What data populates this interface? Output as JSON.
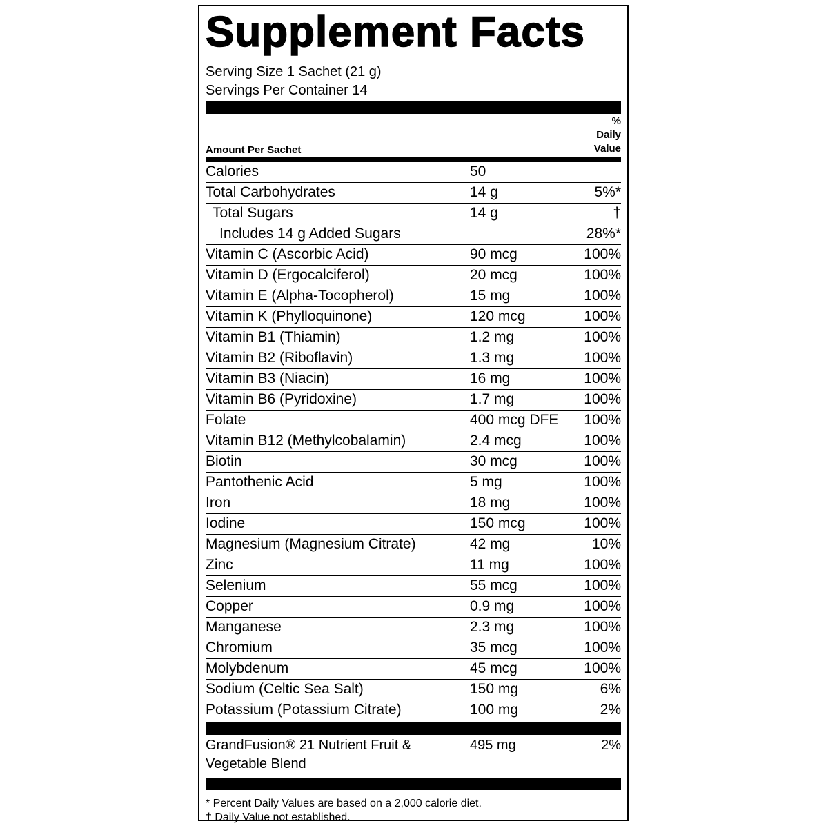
{
  "title": "Supplement Facts",
  "serving_size": "Serving Size 1 Sachet (21 g)",
  "servings_per_container": "Servings Per Container 14",
  "header": {
    "amount_per": "Amount Per Sachet",
    "daily_value": [
      "%",
      "Daily",
      "Value"
    ]
  },
  "rows": [
    {
      "name": "Calories",
      "amount": "50"
    },
    {
      "name": "Total Carbohydrates",
      "amount": "14 g",
      "dv": "5%*",
      "sub": [
        {
          "name": "Total Sugars",
          "amount": "14 g",
          "dv": "†",
          "sub": [
            {
              "name": "Includes 14 g  Added Sugars",
              "dv": "28%*"
            }
          ]
        }
      ]
    },
    {
      "name": "Vitamin C (Ascorbic Acid)",
      "amount": "90 mcg",
      "dv": "100%"
    },
    {
      "name": "Vitamin D (Ergocalciferol)",
      "amount": "20 mcg",
      "dv": "100%"
    },
    {
      "name": "Vitamin E (Alpha-Tocopherol)",
      "amount": "15 mg",
      "dv": "100%"
    },
    {
      "name": "Vitamin K (Phylloquinone)",
      "amount": "120 mcg",
      "dv": "100%"
    },
    {
      "name": "Vitamin B1 (Thiamin)",
      "amount": "1.2 mg",
      "dv": "100%"
    },
    {
      "name": "Vitamin B2 (Riboflavin)",
      "amount": "1.3 mg",
      "dv": "100%"
    },
    {
      "name": "Vitamin B3 (Niacin)",
      "amount": "16 mg",
      "dv": "100%"
    },
    {
      "name": "Vitamin B6 (Pyridoxine)",
      "amount": "1.7 mg",
      "dv": "100%"
    },
    {
      "name": "Folate",
      "amount": "400 mcg DFE",
      "dv": "100%"
    },
    {
      "name": "Vitamin B12 (Methylcobalamin)",
      "amount": "2.4 mcg",
      "dv": "100%"
    },
    {
      "name": "Biotin",
      "amount": "30 mcg",
      "dv": "100%"
    },
    {
      "name": "Pantothenic Acid",
      "amount": "5 mg",
      "dv": "100%"
    },
    {
      "name": "Iron",
      "amount": "18 mg",
      "dv": "100%"
    },
    {
      "name": "Iodine",
      "amount": "150 mcg",
      "dv": "100%"
    },
    {
      "name": "Magnesium (Magnesium Citrate)",
      "amount": "42 mg",
      "dv": "10%"
    },
    {
      "name": "Zinc",
      "amount": "11 mg",
      "dv": "100%"
    },
    {
      "name": "Selenium",
      "amount": "55 mcg",
      "dv": "100%"
    },
    {
      "name": "Copper",
      "amount": "0.9 mg",
      "dv": "100%"
    },
    {
      "name": "Manganese",
      "amount": "2.3 mg",
      "dv": "100%"
    },
    {
      "name": "Chromium",
      "amount": "35 mcg",
      "dv": "100%"
    },
    {
      "name": "Molybdenum",
      "amount": "45 mcg",
      "dv": "100%"
    },
    {
      "name": "Sodium (Celtic Sea Salt)",
      "amount": "150 mg",
      "dv": "6%"
    },
    {
      "name": "Potassium (Potassium Citrate)",
      "amount": "100 mg",
      "dv": "2%"
    }
  ],
  "blend": {
    "name": [
      "GrandFusion® 21 Nutrient Fruit &",
      "Vegetable Blend"
    ],
    "amount": "495 mg",
    "dv": "2%"
  },
  "footnotes": [
    "* Percent Daily Values are based on a 2,000 calorie diet.",
    "† Daily Value not established."
  ]
}
